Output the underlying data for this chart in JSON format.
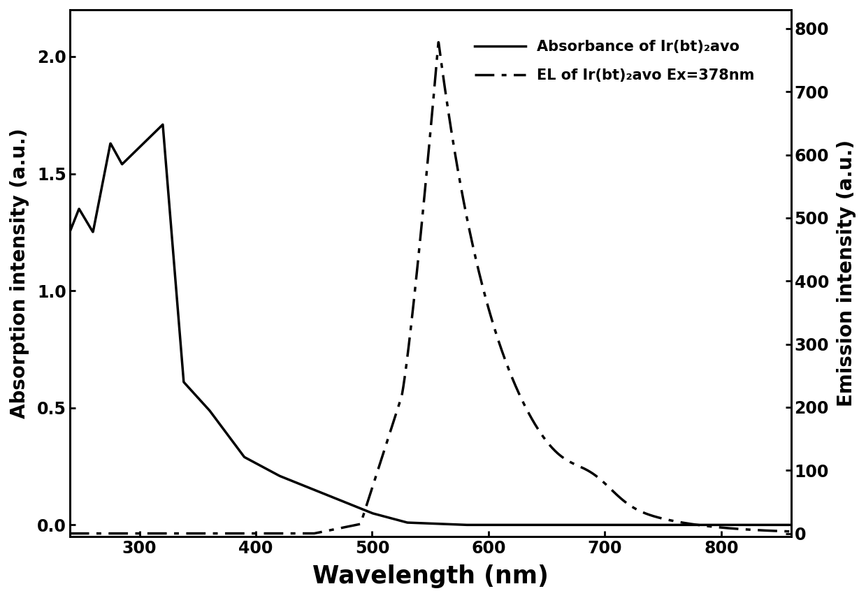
{
  "title": "",
  "xlabel": "Wavelength (nm)",
  "ylabel_left": "Absorption intensity (a.u.)",
  "ylabel_right": "Emission intensity (a.u.)",
  "xlim": [
    240,
    860
  ],
  "ylim_left": [
    -0.05,
    2.2
  ],
  "ylim_right": [
    -5,
    830
  ],
  "xticks": [
    300,
    400,
    500,
    600,
    700,
    800
  ],
  "yticks_left": [
    0.0,
    0.5,
    1.0,
    1.5,
    2.0
  ],
  "yticks_right": [
    0,
    100,
    200,
    300,
    400,
    500,
    600,
    700,
    800
  ],
  "legend1": "Absorbance of Ir(bt)₂avo",
  "legend2": "EL of Ir(bt)₂avo Ex=378nm",
  "background_color": "#ffffff",
  "line_color": "#000000",
  "font_size_label": 20,
  "font_size_tick": 17,
  "font_size_legend": 15
}
